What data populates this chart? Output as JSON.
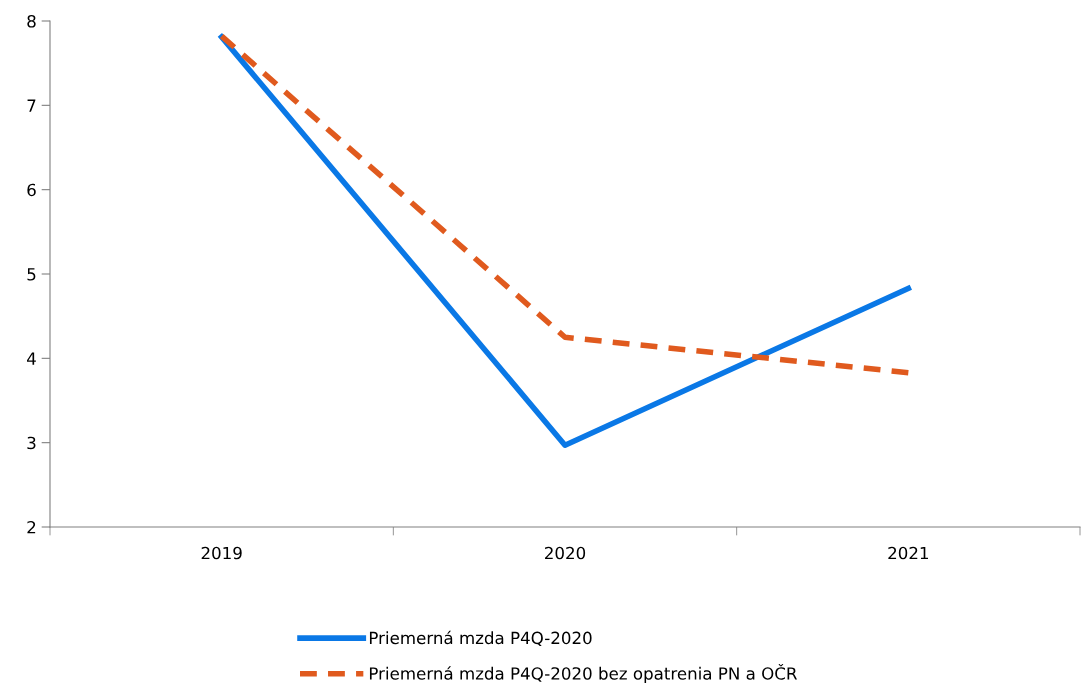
{
  "chart_data": {
    "type": "line",
    "categories": [
      "2019",
      "2020",
      "2021"
    ],
    "series": [
      {
        "name": "Priemerná mzda P4Q-2020",
        "color": "#0a78e6",
        "values": [
          7.81,
          2.97,
          4.83
        ],
        "line_style": "solid"
      },
      {
        "name": "Priemerná mzda P4Q-2020 bez opatrenia PN a OČR",
        "color": "#e05a1e",
        "values": [
          7.82,
          4.25,
          3.83
        ],
        "line_style": "dashed"
      }
    ],
    "ylim": [
      2,
      8
    ],
    "yticks": [
      2,
      3,
      4,
      5,
      6,
      7,
      8
    ],
    "grid": false,
    "legend": "bottom",
    "marker": "none"
  }
}
